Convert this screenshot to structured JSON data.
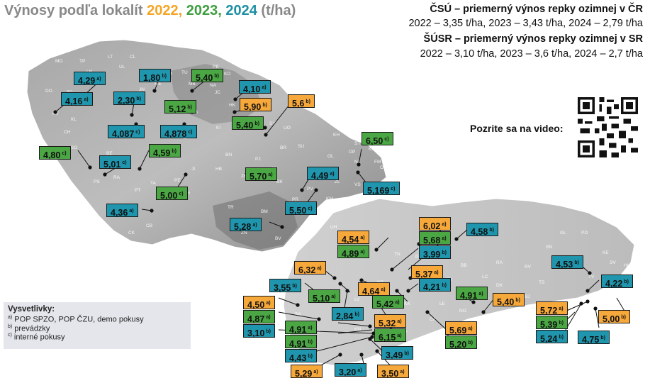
{
  "title": {
    "prefix": "Výnosy podľa lokalít",
    "y2022": "2022,",
    "y2023": "2023,",
    "y2024": "2024",
    "unit": "(t/ha)"
  },
  "colors": {
    "y2022": "#f7a83a",
    "y2023": "#4aa743",
    "y2024": "#1f96ad"
  },
  "stats": {
    "csu_heading": "ČSÚ – priemerný výnos repky ozimnej v ČR",
    "csu_values": "2022 – 3,35 t/ha, 2023 – 3,43 t/ha, 2024 – 2,79 t/ha",
    "susr_heading": "ŠÚSR – priemerný výnos repky ozimnej v SR",
    "susr_values": "2022 – 3,10 t/ha, 2023 – 3,6 t/ha, 2024 – 2,7 t/ha"
  },
  "video_label": "Pozrite sa na video:",
  "qr_icon": "qr-code-icon",
  "legend": {
    "title": "Vysvetlivky:",
    "items": [
      {
        "sup": "a)",
        "text": "POP SPZO, POP ČZU, demo pokusy"
      },
      {
        "sup": "b)",
        "text": "prevádzky"
      },
      {
        "sup": "c)",
        "text": "interné pokusy"
      }
    ]
  },
  "district_codes": [
    "MO",
    "TP",
    "LT",
    "CL",
    "LN",
    "UL",
    "DC",
    "JN",
    "SM",
    "TU",
    "NA",
    "TR",
    "PB",
    "KO",
    "PR",
    "ME",
    "MB",
    "JC",
    "HK",
    "RK",
    "SY",
    "UO",
    "SU",
    "BR",
    "OL",
    "PV",
    "PR",
    "BK",
    "ZR",
    "HB",
    "TR",
    "ZN",
    "BV",
    "HO",
    "UH",
    "JI",
    "PI",
    "CB",
    "CK",
    "PT",
    "TA",
    "KT",
    "PS",
    "RA",
    "SO",
    "CH",
    "KV",
    "TC",
    "DO",
    "KL",
    "BE",
    "NB",
    "KI",
    "CR",
    "PE",
    "JH",
    "BN",
    "PJ",
    "MT",
    "KH",
    "ST",
    "OP",
    "NJ",
    "FM",
    "KA",
    "OV",
    "VS",
    "ZL",
    "KM",
    "BM",
    "PI",
    "NR",
    "BA",
    "TT",
    "DS",
    "KN",
    "LV",
    "NZ",
    "SC",
    "TN",
    "PD",
    "PE",
    "BB",
    "ZV",
    "LC",
    "RA",
    "RV",
    "SN",
    "GL",
    "PO",
    "KE",
    "TV",
    "MI",
    "HU",
    "SV",
    "BJ",
    "SK",
    "ML",
    "LE",
    "KK",
    "PP",
    "CA",
    "NO",
    "DK",
    "TS",
    "NM",
    "MY",
    "SE",
    "KS"
  ],
  "labels": [
    {
      "value": "4,29",
      "sup": "a)",
      "cls": "c-b"
    },
    {
      "value": "1,80",
      "sup": "b)",
      "cls": "c-b"
    },
    {
      "value": "5,40",
      "sup": "b)",
      "cls": "c-g"
    },
    {
      "value": "4,16",
      "sup": "a)",
      "cls": "c-b"
    },
    {
      "value": "2,30",
      "sup": "b)",
      "cls": "c-b"
    },
    {
      "value": "5,12",
      "sup": "b)",
      "cls": "c-g"
    },
    {
      "value": "4,10",
      "sup": "a)",
      "cls": "c-b"
    },
    {
      "value": "5,90",
      "sup": "b)",
      "cls": "c-o"
    },
    {
      "value": "5,6",
      "sup": "b)",
      "cls": "c-o"
    },
    {
      "value": "4,087",
      "sup": "c)",
      "cls": "c-b"
    },
    {
      "value": "4,878",
      "sup": "c)",
      "cls": "c-b"
    },
    {
      "value": "5,40",
      "sup": "b)",
      "cls": "c-g"
    },
    {
      "value": "6,50",
      "sup": "c)",
      "cls": "c-g"
    },
    {
      "value": "4,80",
      "sup": "c)",
      "cls": "c-g"
    },
    {
      "value": "4,59",
      "sup": "b)",
      "cls": "c-g"
    },
    {
      "value": "5,01",
      "sup": "c)",
      "cls": "c-b"
    },
    {
      "value": "5,70",
      "sup": "a)",
      "cls": "c-g"
    },
    {
      "value": "4,49",
      "sup": "a)",
      "cls": "c-b"
    },
    {
      "value": "5,169",
      "sup": "c)",
      "cls": "c-b"
    },
    {
      "value": "5,00",
      "sup": "c)",
      "cls": "c-g"
    },
    {
      "value": "4,36",
      "sup": "a)",
      "cls": "c-b"
    },
    {
      "value": "5,50",
      "sup": "c)",
      "cls": "c-b"
    },
    {
      "value": "5,28",
      "sup": "a)",
      "cls": "c-b"
    },
    {
      "value": "6,02",
      "sup": "a)",
      "cls": "c-o"
    },
    {
      "value": "4,54",
      "sup": "a)",
      "cls": "c-o"
    },
    {
      "value": "5,68",
      "sup": "a)",
      "cls": "c-g"
    },
    {
      "value": "4,58",
      "sup": "b)",
      "cls": "c-b"
    },
    {
      "value": "4,89",
      "sup": "a)",
      "cls": "c-g"
    },
    {
      "value": "3,99",
      "sup": "b)",
      "cls": "c-b"
    },
    {
      "value": "6,32",
      "sup": "a)",
      "cls": "c-o"
    },
    {
      "value": "5,37",
      "sup": "a)",
      "cls": "c-o"
    },
    {
      "value": "4,53",
      "sup": "b)",
      "cls": "c-b"
    },
    {
      "value": "3,55",
      "sup": "b)",
      "cls": "c-b"
    },
    {
      "value": "4,64",
      "sup": "a)",
      "cls": "c-o"
    },
    {
      "value": "4,21",
      "sup": "b)",
      "cls": "c-b"
    },
    {
      "value": "4,22",
      "sup": "b)",
      "cls": "c-b"
    },
    {
      "value": "5,10",
      "sup": "a)",
      "cls": "c-g"
    },
    {
      "value": "4,91",
      "sup": "a)",
      "cls": "c-g"
    },
    {
      "value": "5,42",
      "sup": "a)",
      "cls": "c-g"
    },
    {
      "value": "5,40",
      "sup": "b)",
      "cls": "c-o"
    },
    {
      "value": "4,50",
      "sup": "a)",
      "cls": "c-o"
    },
    {
      "value": "5,72",
      "sup": "a)",
      "cls": "c-o"
    },
    {
      "value": "4,87",
      "sup": "a)",
      "cls": "c-g"
    },
    {
      "value": "2,84",
      "sup": "b)",
      "cls": "c-b"
    },
    {
      "value": "5,32",
      "sup": "a)",
      "cls": "c-o"
    },
    {
      "value": "5,69",
      "sup": "a)",
      "cls": "c-o"
    },
    {
      "value": "5,39",
      "sup": "b)",
      "cls": "c-g"
    },
    {
      "value": "5,00",
      "sup": "b)",
      "cls": "c-o"
    },
    {
      "value": "3,10",
      "sup": "b)",
      "cls": "c-b"
    },
    {
      "value": "4,91",
      "sup": "a)",
      "cls": "c-g"
    },
    {
      "value": "6,15",
      "sup": "a)",
      "cls": "c-g"
    },
    {
      "value": "5,20",
      "sup": "b)",
      "cls": "c-g"
    },
    {
      "value": "5,24",
      "sup": "b)",
      "cls": "c-b"
    },
    {
      "value": "4,91",
      "sup": "b)",
      "cls": "c-g"
    },
    {
      "value": "4,75",
      "sup": "b)",
      "cls": "c-b"
    },
    {
      "value": "4,43",
      "sup": "b)",
      "cls": "c-b"
    },
    {
      "value": "3,49",
      "sup": "b)",
      "cls": "c-b"
    },
    {
      "value": "5,29",
      "sup": "a)",
      "cls": "c-o"
    },
    {
      "value": "3,20",
      "sup": "a)",
      "cls": "c-b"
    },
    {
      "value": "3,50",
      "sup": "a)",
      "cls": "c-o"
    }
  ]
}
